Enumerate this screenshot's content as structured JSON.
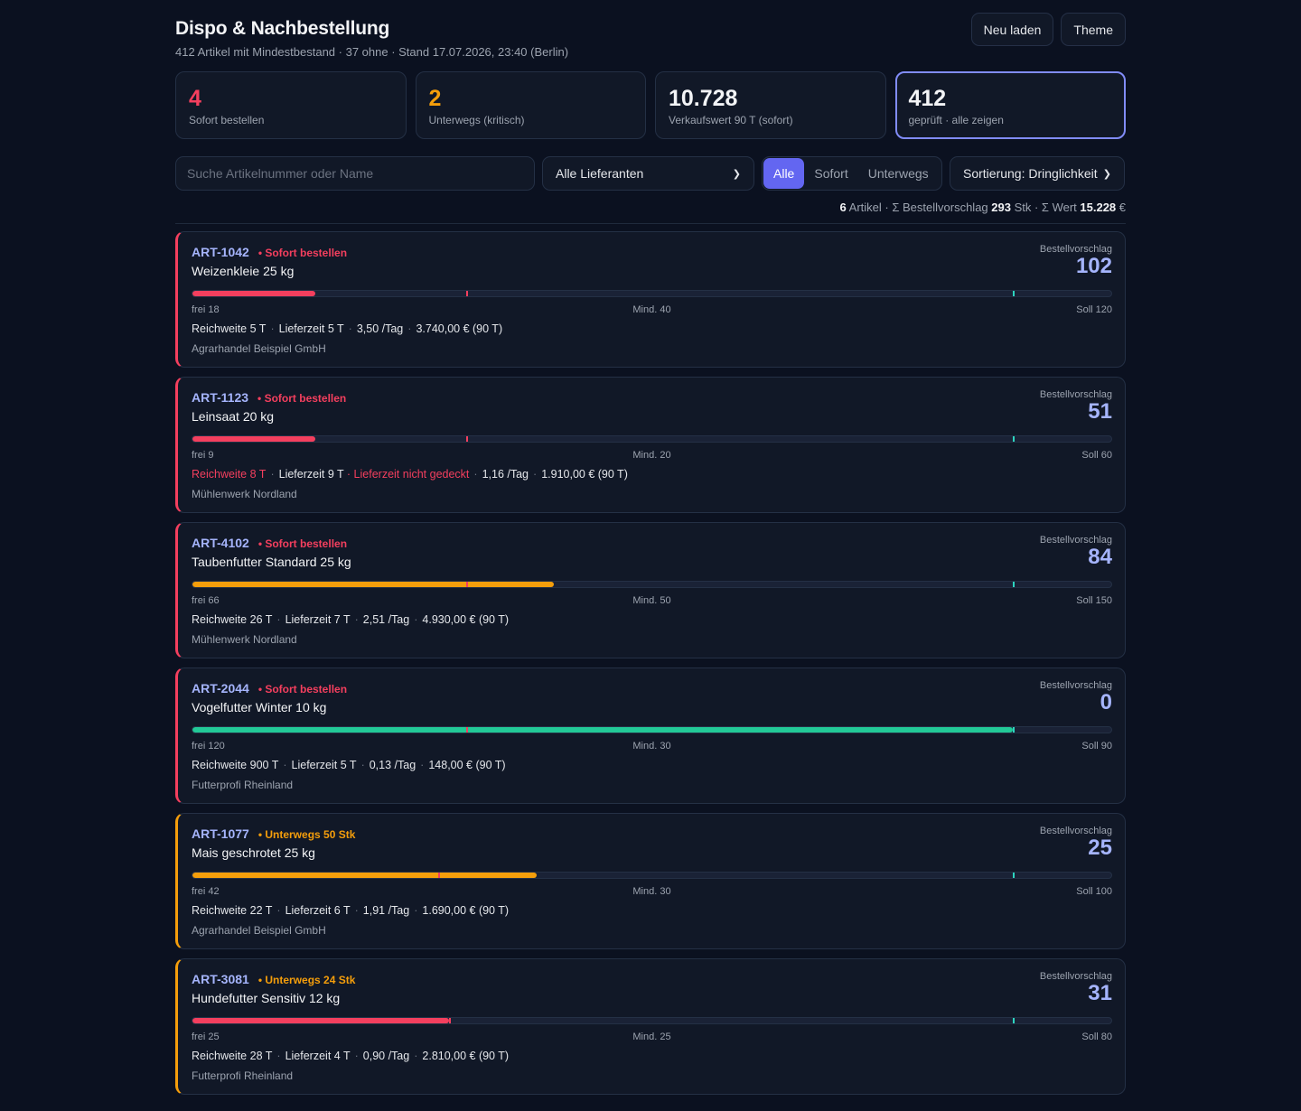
{
  "header": {
    "title": "Dispo & Nachbestellung",
    "subtitle": "412 Artikel mit Mindestbestand · 37 ohne · Stand 17.07.2026, 23:40 (Berlin)",
    "reload_label": "Neu laden",
    "theme_label": "Theme"
  },
  "kpis": [
    {
      "value": "4",
      "label": "Sofort bestellen",
      "color": "#f43f5e"
    },
    {
      "value": "2",
      "label": "Unterwegs (kritisch)",
      "color": "#f59e0b"
    },
    {
      "value": "10.728",
      "label": "Verkaufswert 90 T (sofort)",
      "color": "#f3f4f6"
    },
    {
      "value": "412",
      "label": "geprüft · alle zeigen",
      "color": "#f3f4f6"
    }
  ],
  "toolbar": {
    "search_placeholder": "Suche Artikelnummer oder Name",
    "supplier_selected": "Alle Lieferanten",
    "filter_all": "Alle",
    "filter_now": "Sofort",
    "filter_transit": "Unterwegs",
    "sort_selected": "Sortierung: Dringlichkeit"
  },
  "summary": {
    "count": "6",
    "count_suffix": " Artikel · Σ Bestellvorschlag ",
    "qty": "293",
    "qty_suffix": " Stk · Σ Wert ",
    "value": "15.228",
    "value_suffix": " €"
  },
  "proposal_label": "Bestellvorschlag",
  "colors": {
    "red": "#f43f5e",
    "amber": "#f59e0b",
    "green": "#22c997"
  },
  "articles": [
    {
      "sku": "ART-1042",
      "status": "• Sofort bestellen",
      "status_type": "red",
      "name": "Weizenkleie 25 kg",
      "proposal": "102",
      "free": 18,
      "min": 40,
      "soll": 120,
      "fill_color": "red",
      "free_label": "frei 18",
      "min_label": "Mind. 40",
      "soll_label": "Soll 120",
      "reach": "Reichweite 5 T",
      "reach_warn": false,
      "lead": "Lieferzeit 5 T",
      "lead_warn": "",
      "rate": "3,50 /Tag",
      "value": "3.740,00 € (90 T)",
      "supplier": "Agrarhandel Beispiel GmbH"
    },
    {
      "sku": "ART-1123",
      "status": "• Sofort bestellen",
      "status_type": "red",
      "name": "Leinsaat 20 kg",
      "proposal": "51",
      "free": 9,
      "min": 20,
      "soll": 60,
      "fill_color": "red",
      "free_label": "frei 9",
      "min_label": "Mind. 20",
      "soll_label": "Soll 60",
      "reach": "Reichweite 8 T",
      "reach_warn": true,
      "lead": "Lieferzeit 9 T",
      "lead_warn": "Lieferzeit nicht gedeckt",
      "rate": "1,16 /Tag",
      "value": "1.910,00 € (90 T)",
      "supplier": "Mühlenwerk Nordland"
    },
    {
      "sku": "ART-4102",
      "status": "• Sofort bestellen",
      "status_type": "red",
      "name": "Taubenfutter Standard 25 kg",
      "proposal": "84",
      "free": 66,
      "min": 50,
      "soll": 150,
      "fill_color": "amber",
      "free_label": "frei 66",
      "min_label": "Mind. 50",
      "soll_label": "Soll 150",
      "reach": "Reichweite 26 T",
      "reach_warn": false,
      "lead": "Lieferzeit 7 T",
      "lead_warn": "",
      "rate": "2,51 /Tag",
      "value": "4.930,00 € (90 T)",
      "supplier": "Mühlenwerk Nordland"
    },
    {
      "sku": "ART-2044",
      "status": "• Sofort bestellen",
      "status_type": "red",
      "name": "Vogelfutter Winter 10 kg",
      "proposal": "0",
      "free": 120,
      "min": 30,
      "soll": 90,
      "fill_color": "green",
      "free_label": "frei 120",
      "min_label": "Mind. 30",
      "soll_label": "Soll 90",
      "reach": "Reichweite 900 T",
      "reach_warn": false,
      "lead": "Lieferzeit 5 T",
      "lead_warn": "",
      "rate": "0,13 /Tag",
      "value": "148,00 € (90 T)",
      "supplier": "Futterprofi Rheinland"
    },
    {
      "sku": "ART-1077",
      "status": "• Unterwegs 50 Stk",
      "status_type": "amber",
      "name": "Mais geschrotet 25 kg",
      "proposal": "25",
      "free": 42,
      "min": 30,
      "soll": 100,
      "fill_color": "amber",
      "free_label": "frei 42",
      "min_label": "Mind. 30",
      "soll_label": "Soll 100",
      "reach": "Reichweite 22 T",
      "reach_warn": false,
      "lead": "Lieferzeit 6 T",
      "lead_warn": "",
      "rate": "1,91 /Tag",
      "value": "1.690,00 € (90 T)",
      "supplier": "Agrarhandel Beispiel GmbH"
    },
    {
      "sku": "ART-3081",
      "status": "• Unterwegs 24 Stk",
      "status_type": "amber",
      "name": "Hundefutter Sensitiv 12 kg",
      "proposal": "31",
      "free": 25,
      "min": 25,
      "soll": 80,
      "fill_color": "red",
      "free_label": "frei 25",
      "min_label": "Mind. 25",
      "soll_label": "Soll 80",
      "reach": "Reichweite 28 T",
      "reach_warn": false,
      "lead": "Lieferzeit 4 T",
      "lead_warn": "",
      "rate": "0,90 /Tag",
      "value": "2.810,00 € (90 T)",
      "supplier": "Futterprofi Rheinland"
    }
  ]
}
